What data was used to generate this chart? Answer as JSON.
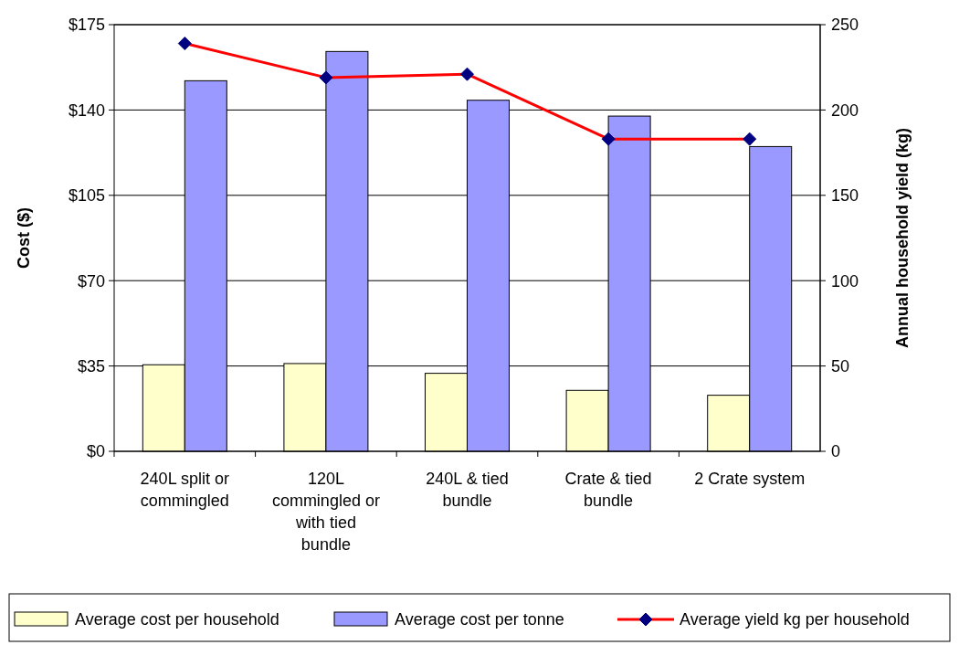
{
  "chart_data": {
    "type": "bar",
    "ylabel": "Cost ($)",
    "y2label": "Annual household yield (kg)",
    "categories": [
      "240L split or commingled",
      "120L commingled or with tied bundle",
      "240L & tied bundle",
      "Crate & tied bundle",
      "2 Crate system"
    ],
    "series": [
      {
        "name": "Average cost per household",
        "color": "#ffffcc",
        "values": [
          35.5,
          36,
          32,
          25,
          23
        ]
      },
      {
        "name": "Average cost per tonne",
        "color": "#9999ff",
        "values": [
          152,
          164,
          144,
          137.5,
          125
        ]
      },
      {
        "name": "Average yield kg per household",
        "type": "line",
        "axis": "y2",
        "color": "#ff0000",
        "marker": "diamond",
        "values": [
          239,
          219,
          221,
          183,
          183
        ]
      }
    ],
    "ylim": [
      0,
      175
    ],
    "yticks": [
      {
        "value": 0,
        "label": "$0"
      },
      {
        "value": 35,
        "label": "$35"
      },
      {
        "value": 70,
        "label": "$70"
      },
      {
        "value": 105,
        "label": "$105"
      },
      {
        "value": 140,
        "label": "$140"
      },
      {
        "value": 175,
        "label": "$175"
      }
    ],
    "y2lim": [
      0,
      250
    ],
    "y2ticks": [
      0,
      50,
      100,
      150,
      200,
      250
    ],
    "grid": "y",
    "legend": "bottom"
  }
}
